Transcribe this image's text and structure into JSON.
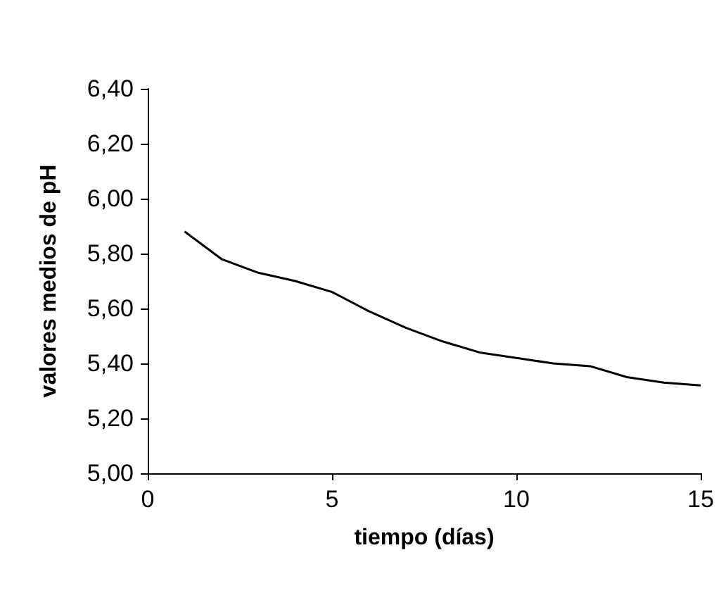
{
  "chart_data": {
    "type": "line",
    "xlabel": "tiempo (días)",
    "ylabel": "valores medios de pH",
    "x": [
      1,
      2,
      3,
      4,
      5,
      6,
      7,
      8,
      9,
      10,
      11,
      12,
      13,
      14,
      15
    ],
    "series": [
      {
        "color": "#000000",
        "values": [
          5.88,
          5.78,
          5.73,
          5.7,
          5.66,
          5.59,
          5.53,
          5.48,
          5.44,
          5.42,
          5.4,
          5.39,
          5.35,
          5.33,
          5.32
        ]
      }
    ],
    "xlim": [
      0,
      15
    ],
    "xticks": [
      0,
      5,
      10,
      15
    ],
    "ylim": [
      5,
      6.4
    ],
    "yticks": [
      {
        "value": 5,
        "label": "5,00"
      },
      {
        "value": 5.2,
        "label": "5,20"
      },
      {
        "value": 5.4,
        "label": "5,40"
      },
      {
        "value": 5.6,
        "label": "5,60"
      },
      {
        "value": 5.8,
        "label": "5,80"
      },
      {
        "value": 6,
        "label": "6,00"
      },
      {
        "value": 6.2,
        "label": "6,20"
      },
      {
        "value": 6.4,
        "label": "6,40"
      }
    ],
    "grid": false,
    "marker": "none",
    "line_style": "solid"
  }
}
